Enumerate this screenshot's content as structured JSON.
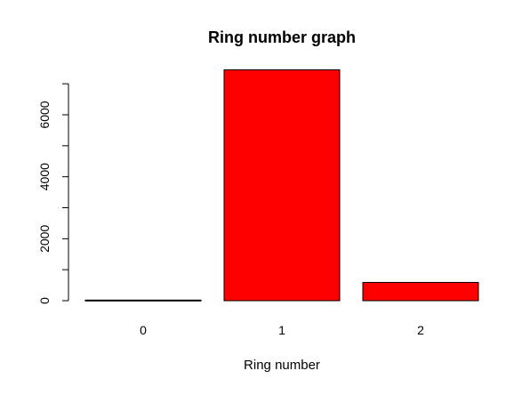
{
  "chart_data": {
    "type": "bar",
    "title": "Ring number graph",
    "xlabel": "Ring number",
    "ylabel": "",
    "categories": [
      "0",
      "1",
      "2"
    ],
    "values": [
      20,
      7450,
      590
    ],
    "ylim": [
      0,
      7500
    ],
    "yticks": [
      0,
      2000,
      4000,
      6000
    ],
    "yticks_minor": [
      1000,
      3000,
      5000,
      7000
    ],
    "grid": false,
    "bar_color": "#ff0000",
    "bar_edge_color": "#000000"
  }
}
